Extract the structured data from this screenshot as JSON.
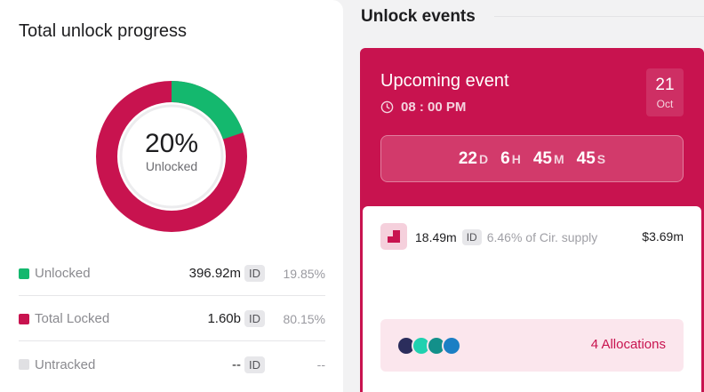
{
  "progress": {
    "title": "Total unlock progress",
    "percent_text": "20%",
    "percent_label": "Unlocked",
    "unlocked_fraction": 0.1985,
    "colors": {
      "unlocked": "#14b86e",
      "locked": "#c8134f",
      "untracked": "#e0e0e3"
    },
    "legend": [
      {
        "label": "Unlocked",
        "value": "396.92m",
        "chip": "ID",
        "pct": "19.85%"
      },
      {
        "label": "Total Locked",
        "value": "1.60b",
        "chip": "ID",
        "pct": "80.15%"
      },
      {
        "label": "Untracked",
        "value": "--",
        "chip": "ID",
        "pct": "--"
      }
    ]
  },
  "events": {
    "title": "Unlock events",
    "upcoming": {
      "title": "Upcoming event",
      "time": "08 : 00 PM",
      "date_day": "21",
      "date_month": "Oct",
      "countdown": {
        "days": "22",
        "days_unit": "D",
        "hours": "6",
        "hours_unit": "H",
        "minutes": "45",
        "minutes_unit": "M",
        "seconds": "45",
        "seconds_unit": "S"
      },
      "amount": "18.49m",
      "chip": "ID",
      "supply": "6.46% of Cir. supply",
      "usd": "$3.69m",
      "allocations": "4 Allocations",
      "avatar_colors": [
        "#2b2d5c",
        "#1fd1b0",
        "#13908a",
        "#1b7fc4"
      ]
    }
  }
}
